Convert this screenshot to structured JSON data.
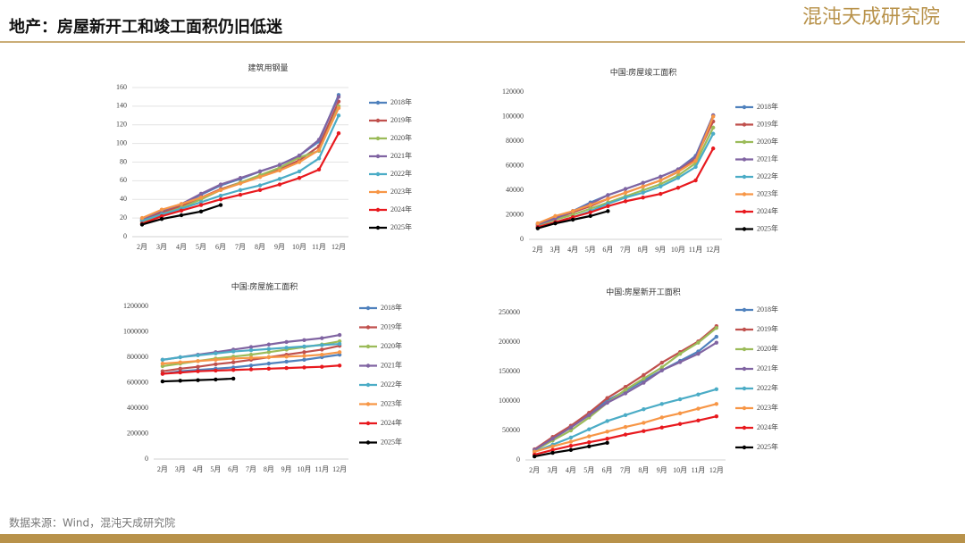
{
  "header": {
    "title": "地产：房屋新开工和竣工面积仍旧低迷",
    "logo": "混沌天成研究院"
  },
  "footer": {
    "source": "数据来源：Wind，混沌天成研究院"
  },
  "chart_data": [
    {
      "type": "line",
      "title": "建筑用钢量",
      "categories": [
        "2月",
        "3月",
        "4月",
        "5月",
        "6月",
        "7月",
        "8月",
        "9月",
        "10月",
        "11月",
        "12月"
      ],
      "ylim": [
        0,
        160
      ],
      "yticks": [
        0,
        20,
        40,
        60,
        80,
        100,
        120,
        140,
        160
      ],
      "grid": true,
      "legend": "right",
      "series": [
        {
          "name": "2018年",
          "color": "#4f81bd",
          "values": [
            18,
            27,
            34,
            45,
            55,
            62,
            70,
            77,
            87,
            102,
            152
          ]
        },
        {
          "name": "2019年",
          "color": "#c0504d",
          "values": [
            17,
            26,
            33,
            42,
            51,
            58,
            65,
            72,
            82,
            97,
            145
          ]
        },
        {
          "name": "2020年",
          "color": "#9bbb59",
          "values": [
            16,
            24,
            31,
            40,
            50,
            58,
            66,
            74,
            85,
            92,
            140
          ]
        },
        {
          "name": "2021年",
          "color": "#8064a2",
          "values": [
            19,
            28,
            35,
            46,
            56,
            63,
            70,
            77,
            87,
            104,
            150
          ]
        },
        {
          "name": "2022年",
          "color": "#4bacc6",
          "values": [
            17,
            24,
            30,
            37,
            44,
            50,
            55,
            62,
            70,
            84,
            130
          ]
        },
        {
          "name": "2023年",
          "color": "#f79646",
          "values": [
            20,
            29,
            35,
            42,
            50,
            57,
            64,
            71,
            80,
            93,
            138
          ]
        },
        {
          "name": "2024年",
          "color": "#e8191e",
          "values": [
            14,
            22,
            28,
            34,
            40,
            45,
            50,
            56,
            63,
            72,
            111
          ]
        },
        {
          "name": "2025年",
          "color": "#000000",
          "values": [
            13,
            19,
            23,
            27,
            34,
            null,
            null,
            null,
            null,
            null,
            null
          ]
        }
      ]
    },
    {
      "type": "line",
      "title": "中国:房屋竣工面积",
      "categories": [
        "2月",
        "3月",
        "4月",
        "5月",
        "6月",
        "7月",
        "8月",
        "9月",
        "10月",
        "11月",
        "12月"
      ],
      "ylim": [
        0,
        120000
      ],
      "yticks": [
        0,
        20000,
        40000,
        60000,
        80000,
        100000,
        120000
      ],
      "grid": false,
      "legend": "right",
      "series": [
        {
          "name": "2018年",
          "color": "#4f81bd",
          "values": [
            13000,
            18000,
            23000,
            30000,
            36000,
            41000,
            46000,
            51000,
            57000,
            68000,
            101000
          ]
        },
        {
          "name": "2019年",
          "color": "#c0504d",
          "values": [
            12000,
            17000,
            22000,
            27000,
            33000,
            38000,
            43000,
            48000,
            55000,
            66000,
            96000
          ]
        },
        {
          "name": "2020年",
          "color": "#9bbb59",
          "values": [
            11000,
            16000,
            20000,
            25000,
            30000,
            35000,
            40000,
            45000,
            52000,
            62000,
            91000
          ]
        },
        {
          "name": "2021年",
          "color": "#8064a2",
          "values": [
            12000,
            17000,
            23000,
            29000,
            36000,
            41000,
            46000,
            51000,
            57000,
            67000,
            101000
          ]
        },
        {
          "name": "2022年",
          "color": "#4bacc6",
          "values": [
            10000,
            14000,
            18000,
            23000,
            29000,
            34000,
            38000,
            43000,
            50000,
            59000,
            86000
          ]
        },
        {
          "name": "2023年",
          "color": "#f79646",
          "values": [
            13000,
            19000,
            23000,
            28000,
            33000,
            38000,
            43000,
            48000,
            55000,
            64000,
            100000
          ]
        },
        {
          "name": "2024年",
          "color": "#e8191e",
          "values": [
            10000,
            14000,
            18000,
            22000,
            27000,
            31000,
            34000,
            37000,
            42000,
            48000,
            74000
          ]
        },
        {
          "name": "2025年",
          "color": "#000000",
          "values": [
            9000,
            13000,
            16000,
            19000,
            23000,
            null,
            null,
            null,
            null,
            null,
            null
          ]
        }
      ]
    },
    {
      "type": "line",
      "title": "中国:房屋施工面积",
      "categories": [
        "2月",
        "3月",
        "4月",
        "5月",
        "6月",
        "7月",
        "8月",
        "9月",
        "10月",
        "11月",
        "12月"
      ],
      "ylim": [
        0,
        1200000
      ],
      "yticks": [
        0,
        200000,
        400000,
        600000,
        800000,
        1000000,
        1200000
      ],
      "grid": false,
      "legend": "right",
      "series": [
        {
          "name": "2018年",
          "color": "#4f81bd",
          "values": [
            670000,
            690000,
            700000,
            710000,
            720000,
            735000,
            750000,
            765000,
            780000,
            800000,
            820000
          ]
        },
        {
          "name": "2019年",
          "color": "#c0504d",
          "values": [
            690000,
            710000,
            725000,
            745000,
            760000,
            780000,
            800000,
            820000,
            840000,
            860000,
            890000
          ]
        },
        {
          "name": "2020年",
          "color": "#9bbb59",
          "values": [
            730000,
            750000,
            770000,
            790000,
            805000,
            820000,
            840000,
            860000,
            880000,
            900000,
            925000
          ]
        },
        {
          "name": "2021年",
          "color": "#8064a2",
          "values": [
            780000,
            800000,
            820000,
            840000,
            860000,
            880000,
            900000,
            920000,
            935000,
            950000,
            975000
          ]
        },
        {
          "name": "2022年",
          "color": "#4bacc6",
          "values": [
            780000,
            800000,
            815000,
            830000,
            845000,
            855000,
            865000,
            875000,
            885000,
            895000,
            905000
          ]
        },
        {
          "name": "2023年",
          "color": "#f79646",
          "values": [
            750000,
            760000,
            770000,
            780000,
            790000,
            795000,
            800000,
            805000,
            810000,
            820000,
            840000
          ]
        },
        {
          "name": "2024年",
          "color": "#e8191e",
          "values": [
            670000,
            680000,
            690000,
            695000,
            700000,
            705000,
            710000,
            715000,
            720000,
            725000,
            735000
          ]
        },
        {
          "name": "2025年",
          "color": "#000000",
          "values": [
            610000,
            615000,
            620000,
            625000,
            632000,
            null,
            null,
            null,
            null,
            null,
            null
          ]
        }
      ]
    },
    {
      "type": "line",
      "title": "中国:房屋新开工面积",
      "categories": [
        "2月",
        "3月",
        "4月",
        "5月",
        "6月",
        "7月",
        "8月",
        "9月",
        "10月",
        "11月",
        "12月"
      ],
      "ylim": [
        0,
        250000
      ],
      "yticks": [
        0,
        50000,
        100000,
        150000,
        200000,
        250000
      ],
      "grid": false,
      "legend": "right",
      "series": [
        {
          "name": "2018年",
          "color": "#4f81bd",
          "values": [
            17000,
            36000,
            55000,
            77000,
            101000,
            117000,
            135000,
            152000,
            168000,
            184000,
            209000
          ]
        },
        {
          "name": "2019年",
          "color": "#c0504d",
          "values": [
            18000,
            39000,
            58000,
            80000,
            105000,
            124000,
            144000,
            165000,
            183000,
            201000,
            227000
          ]
        },
        {
          "name": "2020年",
          "color": "#9bbb59",
          "values": [
            16000,
            33000,
            50000,
            72000,
            97000,
            119000,
            138000,
            157000,
            180000,
            199000,
            224000
          ]
        },
        {
          "name": "2021年",
          "color": "#8064a2",
          "values": [
            17000,
            36000,
            55000,
            76000,
            97000,
            113000,
            131000,
            152000,
            166000,
            180000,
            199000
          ]
        },
        {
          "name": "2022年",
          "color": "#4bacc6",
          "values": [
            14000,
            26000,
            38000,
            52000,
            66000,
            76000,
            86000,
            95000,
            103000,
            111000,
            120000
          ]
        },
        {
          "name": "2023年",
          "color": "#f79646",
          "values": [
            14000,
            23000,
            31000,
            40000,
            48000,
            56000,
            63000,
            72000,
            79000,
            87000,
            95000
          ]
        },
        {
          "name": "2024年",
          "color": "#e8191e",
          "values": [
            9000,
            17000,
            24000,
            30000,
            36000,
            43000,
            49000,
            55000,
            61000,
            67000,
            74000
          ]
        },
        {
          "name": "2025年",
          "color": "#000000",
          "values": [
            6000,
            12000,
            17000,
            23000,
            29000,
            null,
            null,
            null,
            null,
            null,
            null
          ]
        }
      ]
    }
  ]
}
